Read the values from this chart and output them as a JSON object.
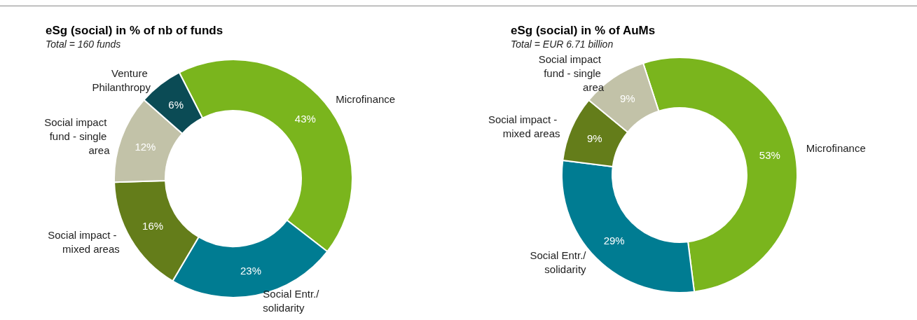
{
  "chart_data": [
    {
      "type": "donut",
      "title": "eSg (social) in % of nb of funds",
      "subtitle": "Total = 160 funds",
      "categories": [
        "Microfinance",
        "Social Entr./solidarity",
        "Social impact - mixed areas",
        "Social impact fund - single area",
        "Venture Philanthropy"
      ],
      "values": [
        43,
        23,
        16,
        12,
        6
      ],
      "value_labels": [
        "43%",
        "23%",
        "16%",
        "12%",
        "6%"
      ],
      "colors": [
        "#7ab51d",
        "#007c92",
        "#647d1a",
        "#c2c2a8",
        "#0b4b55"
      ],
      "legend": false
    },
    {
      "type": "donut",
      "title": "eSg (social) in % of AuMs",
      "subtitle": "Total = EUR 6.71 billion",
      "categories": [
        "Microfinance",
        "Social Entr./solidarity",
        "Social impact - mixed areas",
        "Social impact fund - single area"
      ],
      "values": [
        53,
        29,
        9,
        9
      ],
      "value_labels": [
        "53%",
        "29%",
        "9%",
        "9%"
      ],
      "colors": [
        "#7ab51d",
        "#007c92",
        "#647d1a",
        "#c2c2a8"
      ],
      "legend": false
    }
  ]
}
